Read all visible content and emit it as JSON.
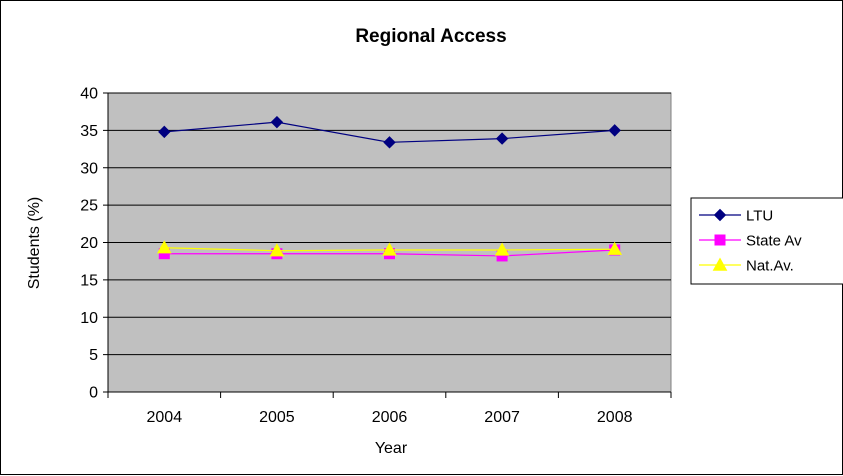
{
  "chart_data": {
    "type": "line",
    "title": "Regional Access",
    "xlabel": "Year",
    "ylabel": "Students (%)",
    "categories": [
      "2004",
      "2005",
      "2006",
      "2007",
      "2008"
    ],
    "ylim": [
      0,
      40
    ],
    "yticks": [
      0,
      5,
      10,
      15,
      20,
      25,
      30,
      35,
      40
    ],
    "grid": true,
    "plot_background": "#C0C0C0",
    "legend_position": "right",
    "series": [
      {
        "name": "LTU",
        "values": [
          34.8,
          36.1,
          33.4,
          33.9,
          35.0
        ],
        "color": "#000080",
        "marker": "diamond"
      },
      {
        "name": "State Av",
        "values": [
          18.5,
          18.5,
          18.5,
          18.2,
          19.0
        ],
        "color": "#FF00FF",
        "marker": "square"
      },
      {
        "name": "Nat.Av.",
        "values": [
          19.3,
          18.9,
          19.0,
          19.0,
          19.1
        ],
        "color": "#FFFF00",
        "marker": "triangle"
      }
    ]
  }
}
